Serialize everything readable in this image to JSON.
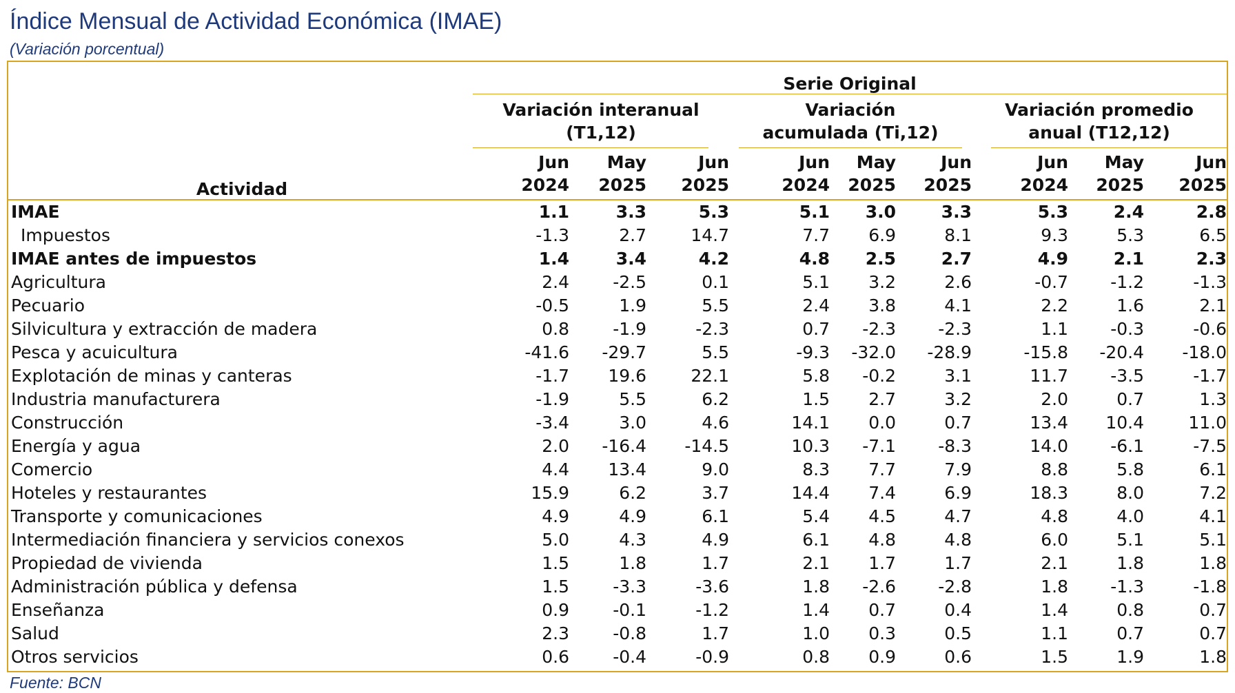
{
  "title": "Índice Mensual de Actividad Económica (IMAE)",
  "subtitle": "(Variación porcentual)",
  "source": "Fuente: BCN",
  "table": {
    "activity_header": "Actividad",
    "serie_header": "Serie Original",
    "groups": [
      {
        "line1": "Variación interanual",
        "line2": "(T1,12)"
      },
      {
        "line1": "Variación",
        "line2": "acumulada (Ti,12)"
      },
      {
        "line1": "Variación promedio",
        "line2": "anual (T12,12)"
      }
    ],
    "periods": [
      {
        "m": "Jun",
        "y": "2024"
      },
      {
        "m": "May",
        "y": "2025"
      },
      {
        "m": "Jun",
        "y": "2025"
      },
      {
        "m": "Jun",
        "y": "2024"
      },
      {
        "m": "May",
        "y": "2025"
      },
      {
        "m": "Jun",
        "y": "2025"
      },
      {
        "m": "Jun",
        "y": "2024"
      },
      {
        "m": "May",
        "y": "2025"
      },
      {
        "m": "Jun",
        "y": "2025"
      }
    ],
    "rows": [
      {
        "label": "IMAE",
        "bold": true,
        "indent": false,
        "values": [
          "1.1",
          "3.3",
          "5.3",
          "5.1",
          "3.0",
          "3.3",
          "5.3",
          "2.4",
          "2.8"
        ]
      },
      {
        "label": "Impuestos",
        "bold": false,
        "indent": true,
        "values": [
          "-1.3",
          "2.7",
          "14.7",
          "7.7",
          "6.9",
          "8.1",
          "9.3",
          "5.3",
          "6.5"
        ]
      },
      {
        "label": "IMAE antes de impuestos",
        "bold": true,
        "indent": false,
        "values": [
          "1.4",
          "3.4",
          "4.2",
          "4.8",
          "2.5",
          "2.7",
          "4.9",
          "2.1",
          "2.3"
        ]
      },
      {
        "label": "Agricultura",
        "bold": false,
        "indent": false,
        "values": [
          "2.4",
          "-2.5",
          "0.1",
          "5.1",
          "3.2",
          "2.6",
          "-0.7",
          "-1.2",
          "-1.3"
        ]
      },
      {
        "label": "Pecuario",
        "bold": false,
        "indent": false,
        "values": [
          "-0.5",
          "1.9",
          "5.5",
          "2.4",
          "3.8",
          "4.1",
          "2.2",
          "1.6",
          "2.1"
        ]
      },
      {
        "label": "Silvicultura y extracción de madera",
        "bold": false,
        "indent": false,
        "values": [
          "0.8",
          "-1.9",
          "-2.3",
          "0.7",
          "-2.3",
          "-2.3",
          "1.1",
          "-0.3",
          "-0.6"
        ]
      },
      {
        "label": "Pesca y acuicultura",
        "bold": false,
        "indent": false,
        "values": [
          "-41.6",
          "-29.7",
          "5.5",
          "-9.3",
          "-32.0",
          "-28.9",
          "-15.8",
          "-20.4",
          "-18.0"
        ]
      },
      {
        "label": "Explotación de minas y canteras",
        "bold": false,
        "indent": false,
        "values": [
          "-1.7",
          "19.6",
          "22.1",
          "5.8",
          "-0.2",
          "3.1",
          "11.7",
          "-3.5",
          "-1.7"
        ]
      },
      {
        "label": "Industria manufacturera",
        "bold": false,
        "indent": false,
        "values": [
          "-1.9",
          "5.5",
          "6.2",
          "1.5",
          "2.7",
          "3.2",
          "2.0",
          "0.7",
          "1.3"
        ]
      },
      {
        "label": "Construcción",
        "bold": false,
        "indent": false,
        "values": [
          "-3.4",
          "3.0",
          "4.6",
          "14.1",
          "0.0",
          "0.7",
          "13.4",
          "10.4",
          "11.0"
        ]
      },
      {
        "label": "Energía y agua",
        "bold": false,
        "indent": false,
        "values": [
          "2.0",
          "-16.4",
          "-14.5",
          "10.3",
          "-7.1",
          "-8.3",
          "14.0",
          "-6.1",
          "-7.5"
        ]
      },
      {
        "label": "Comercio",
        "bold": false,
        "indent": false,
        "values": [
          "4.4",
          "13.4",
          "9.0",
          "8.3",
          "7.7",
          "7.9",
          "8.8",
          "5.8",
          "6.1"
        ]
      },
      {
        "label": "Hoteles y restaurantes",
        "bold": false,
        "indent": false,
        "values": [
          "15.9",
          "6.2",
          "3.7",
          "14.4",
          "7.4",
          "6.9",
          "18.3",
          "8.0",
          "7.2"
        ]
      },
      {
        "label": "Transporte y comunicaciones",
        "bold": false,
        "indent": false,
        "values": [
          "4.9",
          "4.9",
          "6.1",
          "5.4",
          "4.5",
          "4.7",
          "4.8",
          "4.0",
          "4.1"
        ]
      },
      {
        "label": "Intermediación financiera y servicios conexos",
        "bold": false,
        "indent": false,
        "values": [
          "5.0",
          "4.3",
          "4.9",
          "6.1",
          "4.8",
          "4.8",
          "6.0",
          "5.1",
          "5.1"
        ]
      },
      {
        "label": "Propiedad de vivienda",
        "bold": false,
        "indent": false,
        "values": [
          "1.5",
          "1.8",
          "1.7",
          "2.1",
          "1.7",
          "1.7",
          "2.1",
          "1.8",
          "1.8"
        ]
      },
      {
        "label": "Administración pública y defensa",
        "bold": false,
        "indent": false,
        "values": [
          "1.5",
          "-3.3",
          "-3.6",
          "1.8",
          "-2.6",
          "-2.8",
          "1.8",
          "-1.3",
          "-1.8"
        ]
      },
      {
        "label": "Enseñanza",
        "bold": false,
        "indent": false,
        "values": [
          "0.9",
          "-0.1",
          "-1.2",
          "1.4",
          "0.7",
          "0.4",
          "1.4",
          "0.8",
          "0.7"
        ]
      },
      {
        "label": "Salud",
        "bold": false,
        "indent": false,
        "values": [
          "2.3",
          "-0.8",
          "1.7",
          "1.0",
          "0.3",
          "0.5",
          "1.1",
          "0.7",
          "0.7"
        ]
      },
      {
        "label": "Otros servicios",
        "bold": false,
        "indent": false,
        "values": [
          "0.6",
          "-0.4",
          "-0.9",
          "0.8",
          "0.9",
          "0.6",
          "1.5",
          "1.9",
          "1.8"
        ]
      }
    ]
  },
  "colors": {
    "title": "#1f3a7a",
    "border": "#d9a520",
    "text": "#111111"
  }
}
